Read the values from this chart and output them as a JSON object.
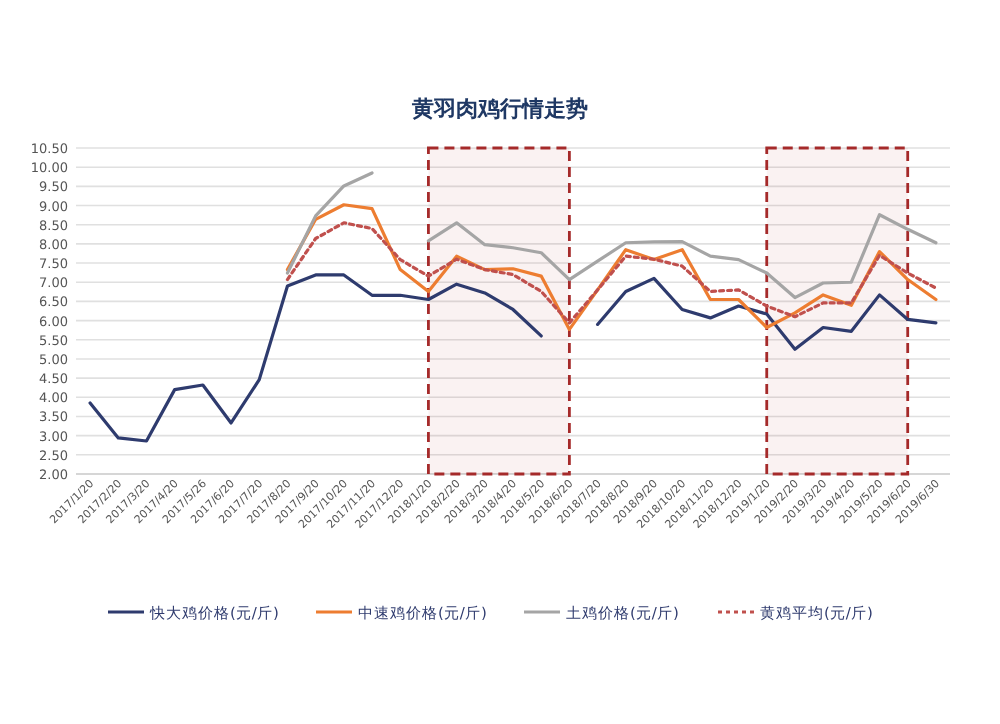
{
  "chart_data": {
    "type": "line",
    "title": "黄羽肉鸡行情走势",
    "categories": [
      "2017/1/20",
      "2017/2/20",
      "2017/3/20",
      "2017/4/20",
      "2017/5/26",
      "2017/6/20",
      "2017/7/20",
      "2017/8/20",
      "2017/9/20",
      "2017/10/20",
      "2017/11/20",
      "2017/12/20",
      "2018/1/20",
      "2018/2/20",
      "2018/3/20",
      "2018/4/20",
      "2018/5/20",
      "2018/6/20",
      "2018/7/20",
      "2018/8/20",
      "2018/9/20",
      "2018/10/20",
      "2018/11/20",
      "2018/12/20",
      "2019/1/20",
      "2019/2/20",
      "2019/3/20",
      "2019/4/20",
      "2019/5/20",
      "2019/6/20",
      "2019/6/30"
    ],
    "series": [
      {
        "name": "快大鸡价格(元/斤)",
        "color": "#2e3b6e",
        "line_style": "solid",
        "values": [
          3.85,
          2.94,
          2.86,
          4.2,
          4.32,
          3.33,
          4.46,
          6.9,
          7.19,
          7.19,
          6.66,
          6.66,
          6.55,
          6.95,
          6.72,
          6.29,
          5.6,
          null,
          5.9,
          6.76,
          7.1,
          6.29,
          6.07,
          6.38,
          6.17,
          5.25,
          5.82,
          5.72,
          6.67,
          6.03,
          5.94
        ]
      },
      {
        "name": "中速鸡价格(元/斤)",
        "color": "#ed7d31",
        "line_style": "solid",
        "values": [
          null,
          null,
          null,
          null,
          null,
          null,
          null,
          7.33,
          8.64,
          9.02,
          8.92,
          7.33,
          6.76,
          7.68,
          7.33,
          7.35,
          7.16,
          5.77,
          6.8,
          7.85,
          7.59,
          7.85,
          6.55,
          6.55,
          5.82,
          6.2,
          6.67,
          6.4,
          7.8,
          7.07,
          6.55
        ]
      },
      {
        "name": "土鸡价格(元/斤)",
        "color": "#a5a5a5",
        "line_style": "solid",
        "values": [
          null,
          null,
          null,
          null,
          null,
          null,
          null,
          7.24,
          8.73,
          9.51,
          9.85,
          null,
          8.08,
          8.55,
          7.98,
          7.9,
          7.77,
          7.07,
          7.55,
          8.03,
          8.05,
          8.06,
          7.68,
          7.59,
          7.24,
          6.6,
          6.98,
          7.0,
          8.76,
          8.38,
          8.03
        ]
      },
      {
        "name": "黄鸡平均(元/斤)",
        "color": "#c0504d",
        "line_style": "dotted",
        "values": [
          null,
          null,
          null,
          null,
          null,
          null,
          null,
          7.07,
          8.14,
          8.55,
          8.4,
          7.59,
          7.16,
          7.6,
          7.33,
          7.2,
          6.76,
          5.94,
          6.8,
          7.68,
          7.6,
          7.42,
          6.76,
          6.8,
          6.38,
          6.1,
          6.46,
          6.46,
          7.7,
          7.24,
          6.85
        ]
      }
    ],
    "ylim": [
      2,
      10.5
    ],
    "yticks": [
      {
        "value": 2,
        "label": "2.00"
      },
      {
        "value": 2.5,
        "label": "2.50"
      },
      {
        "value": 3,
        "label": "3.00"
      },
      {
        "value": 3.5,
        "label": "3.50"
      },
      {
        "value": 4,
        "label": "4.00"
      },
      {
        "value": 4.5,
        "label": "4.50"
      },
      {
        "value": 5,
        "label": "5.00"
      },
      {
        "value": 5.5,
        "label": "5.50"
      },
      {
        "value": 6,
        "label": "6.00"
      },
      {
        "value": 6.5,
        "label": "6.50"
      },
      {
        "value": 7,
        "label": "7.00"
      },
      {
        "value": 7.5,
        "label": "7.50"
      },
      {
        "value": 8,
        "label": "8.00"
      },
      {
        "value": 8.5,
        "label": "8.50"
      },
      {
        "value": 9,
        "label": "9.00"
      },
      {
        "value": 9.5,
        "label": "9.50"
      },
      {
        "value": 10,
        "label": "10.00"
      },
      {
        "value": 10.5,
        "label": "10.50"
      }
    ],
    "bands": [
      {
        "axis": "x",
        "from": "2018/1/20",
        "to": "2018/6/20",
        "color": "#a52a2a"
      },
      {
        "axis": "x",
        "from": "2019/1/20",
        "to": "2019/6/20",
        "color": "#a52a2a"
      }
    ],
    "grid": "y",
    "legend": "bottom",
    "marker": "none"
  }
}
